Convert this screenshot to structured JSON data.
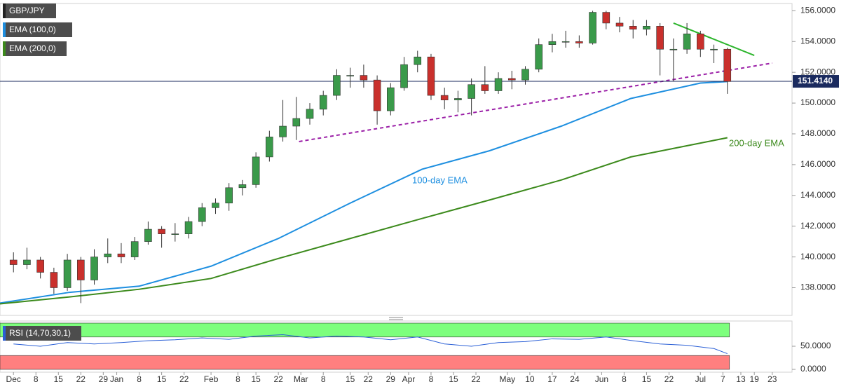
{
  "chart_data": {
    "type": "candlestick",
    "name": "GBP/JPY",
    "up_color": "#3a9a4a",
    "down_color": "#c9302c",
    "xlim": [
      -3,
      173.4
    ],
    "xticks": [
      {
        "value": 0,
        "label": "Dec"
      },
      {
        "value": 5,
        "label": "8"
      },
      {
        "value": 10,
        "label": "15"
      },
      {
        "value": 15,
        "label": "22"
      },
      {
        "value": 20,
        "label": "29"
      },
      {
        "value": 23,
        "label": "Jan"
      },
      {
        "value": 28,
        "label": "8"
      },
      {
        "value": 33,
        "label": "15"
      },
      {
        "value": 38,
        "label": "22"
      },
      {
        "value": 44,
        "label": "Feb"
      },
      {
        "value": 50,
        "label": "8"
      },
      {
        "value": 54,
        "label": "15"
      },
      {
        "value": 59,
        "label": "22"
      },
      {
        "value": 64,
        "label": "Mar"
      },
      {
        "value": 69,
        "label": "8"
      },
      {
        "value": 75,
        "label": "15"
      },
      {
        "value": 79,
        "label": "22"
      },
      {
        "value": 84,
        "label": "29"
      },
      {
        "value": 88,
        "label": "Apr"
      },
      {
        "value": 93,
        "label": "8"
      },
      {
        "value": 98,
        "label": "15"
      },
      {
        "value": 103,
        "label": "22"
      },
      {
        "value": 110,
        "label": "May"
      },
      {
        "value": 115,
        "label": "10"
      },
      {
        "value": 120,
        "label": "17"
      },
      {
        "value": 125,
        "label": "24"
      },
      {
        "value": 131,
        "label": "Jun"
      },
      {
        "value": 136,
        "label": "8"
      },
      {
        "value": 141,
        "label": "15"
      },
      {
        "value": 146,
        "label": "22"
      },
      {
        "value": 153,
        "label": "Jul"
      },
      {
        "value": 158,
        "label": "7"
      },
      {
        "value": 162,
        "label": "13"
      },
      {
        "value": 165,
        "label": "19"
      },
      {
        "value": 169,
        "label": "23"
      }
    ],
    "ylim": [
      136.2,
      156.7
    ],
    "yticks": [
      {
        "value": 138,
        "label": "138.0000"
      },
      {
        "value": 140,
        "label": "140.0000"
      },
      {
        "value": 142,
        "label": "142.0000"
      },
      {
        "value": 144,
        "label": "144.0000"
      },
      {
        "value": 146,
        "label": "146.0000"
      },
      {
        "value": 148,
        "label": "148.0000"
      },
      {
        "value": 150,
        "label": "150.0000"
      },
      {
        "value": 152,
        "label": "152.0000"
      },
      {
        "value": 154,
        "label": "154.0000"
      },
      {
        "value": 156,
        "label": "156.0000"
      }
    ],
    "x": [
      0,
      3,
      6,
      9,
      12,
      15,
      18,
      21,
      24,
      27,
      30,
      33,
      36,
      39,
      42,
      45,
      48,
      51,
      54,
      57,
      60,
      63,
      66,
      69,
      72,
      75,
      78,
      81,
      84,
      87,
      90,
      93,
      96,
      99,
      102,
      105,
      108,
      111,
      114,
      117,
      120,
      123,
      126,
      129,
      132,
      135,
      138,
      141,
      144,
      147,
      150,
      153,
      156,
      159
    ],
    "open": [
      139.8,
      139.5,
      139.8,
      139.0,
      138.0,
      139.8,
      138.5,
      140.0,
      140.2,
      140.0,
      141.0,
      141.8,
      141.5,
      141.5,
      142.3,
      143.2,
      143.5,
      144.5,
      144.7,
      146.5,
      147.8,
      148.5,
      149.0,
      149.6,
      150.5,
      151.8,
      151.8,
      151.5,
      149.5,
      151.0,
      152.5,
      153.0,
      150.5,
      150.2,
      150.3,
      151.2,
      150.8,
      151.6,
      151.5,
      152.2,
      153.8,
      154.0,
      154.0,
      153.9,
      155.9,
      155.2,
      155.0,
      154.8,
      155.0,
      153.5,
      153.5,
      154.5,
      153.5,
      153.5
    ],
    "high": [
      140.3,
      140.6,
      140.0,
      139.3,
      140.2,
      140.0,
      140.5,
      141.2,
      140.9,
      141.3,
      142.3,
      142.0,
      142.2,
      142.6,
      143.5,
      143.8,
      144.8,
      145.0,
      146.8,
      148.2,
      150.2,
      150.4,
      150.0,
      150.8,
      152.2,
      152.3,
      152.5,
      151.8,
      151.3,
      153.0,
      153.4,
      153.2,
      151.0,
      150.8,
      151.6,
      152.4,
      152.0,
      152.1,
      152.4,
      154.2,
      154.5,
      154.7,
      154.4,
      156.0,
      156.0,
      155.6,
      155.4,
      155.4,
      155.2,
      154.2,
      155.2,
      154.7,
      153.8,
      153.6
    ],
    "low": [
      139.0,
      139.2,
      138.6,
      137.6,
      137.8,
      137.0,
      138.2,
      139.6,
      139.6,
      139.8,
      140.8,
      140.6,
      141.0,
      141.2,
      142.0,
      142.8,
      143.0,
      144.0,
      144.5,
      146.2,
      147.5,
      147.6,
      148.6,
      149.2,
      150.2,
      151.0,
      151.0,
      148.6,
      149.2,
      150.8,
      152.0,
      150.2,
      149.6,
      149.4,
      149.2,
      150.6,
      150.6,
      150.9,
      151.2,
      152.0,
      153.3,
      153.6,
      153.6,
      153.8,
      154.8,
      154.6,
      154.2,
      154.4,
      151.8,
      151.4,
      153.2,
      153.0,
      152.6,
      150.6
    ],
    "close": [
      139.5,
      139.8,
      139.0,
      138.0,
      139.8,
      138.5,
      140.0,
      140.2,
      140.0,
      141.0,
      141.8,
      141.5,
      141.5,
      142.3,
      143.2,
      143.5,
      144.5,
      144.7,
      146.5,
      147.8,
      148.5,
      149.0,
      149.6,
      150.5,
      151.8,
      151.8,
      151.5,
      149.5,
      151.0,
      152.5,
      153.0,
      150.5,
      150.2,
      150.3,
      151.2,
      150.8,
      151.6,
      151.5,
      152.2,
      153.8,
      154.0,
      154.0,
      153.9,
      155.9,
      155.2,
      155.0,
      154.8,
      155.0,
      153.5,
      153.5,
      154.5,
      153.5,
      153.5,
      151.4
    ],
    "series": [
      {
        "name": "EMA (100,0)",
        "color": "#1e8fe0",
        "x": [
          -3,
          12.5,
          28,
          44,
          59,
          75,
          91,
          106,
          122,
          137.5,
          153,
          159
        ],
        "values": [
          137.0,
          137.7,
          138.1,
          139.4,
          141.2,
          143.5,
          145.7,
          146.9,
          148.5,
          150.3,
          151.3,
          151.4
        ]
      },
      {
        "name": "EMA (200,0)",
        "color": "#3c8a1c",
        "x": [
          -3,
          12.5,
          28,
          44,
          59,
          75,
          91,
          106,
          122,
          137.5,
          153,
          159
        ],
        "values": [
          136.95,
          137.4,
          137.9,
          138.6,
          139.9,
          141.2,
          142.5,
          143.7,
          145.0,
          146.5,
          147.4,
          147.75
        ]
      }
    ],
    "annotations": [
      {
        "text": "100-day EMA",
        "color": "#1e8fe0"
      },
      {
        "text": "200-day EMA",
        "color": "#3c8a1c"
      }
    ],
    "trendlines": [
      {
        "color": "#9b1fa7",
        "dash": true,
        "x": [
          63.6,
          169
        ],
        "y": [
          147.5,
          152.6
        ]
      },
      {
        "color": "#2db52d",
        "dash": false,
        "x": [
          147,
          165
        ],
        "y": [
          155.2,
          153.1
        ]
      }
    ],
    "last_price": {
      "value": 151.414,
      "label": "151.4140"
    },
    "rsi": {
      "label": "RSI (14,70,30,1)",
      "color": "#2a5fd6",
      "ylim": [
        0,
        100
      ],
      "yticks": [
        {
          "value": 50,
          "label": "50.0000"
        },
        {
          "value": 0,
          "label": "0.0000"
        }
      ],
      "overbought": [
        70,
        100
      ],
      "oversold": [
        0,
        30
      ],
      "x": [
        0,
        6,
        12,
        18,
        24,
        30,
        36,
        42,
        48,
        54,
        60,
        66,
        72,
        78,
        84,
        90,
        96,
        102,
        108,
        114,
        120,
        126,
        132,
        138,
        144,
        150,
        156,
        159
      ],
      "values": [
        55,
        50,
        58,
        55,
        58,
        62,
        64,
        68,
        65,
        72,
        75,
        68,
        72,
        70,
        64,
        70,
        55,
        50,
        58,
        60,
        66,
        65,
        70,
        62,
        55,
        52,
        45,
        34
      ]
    }
  }
}
